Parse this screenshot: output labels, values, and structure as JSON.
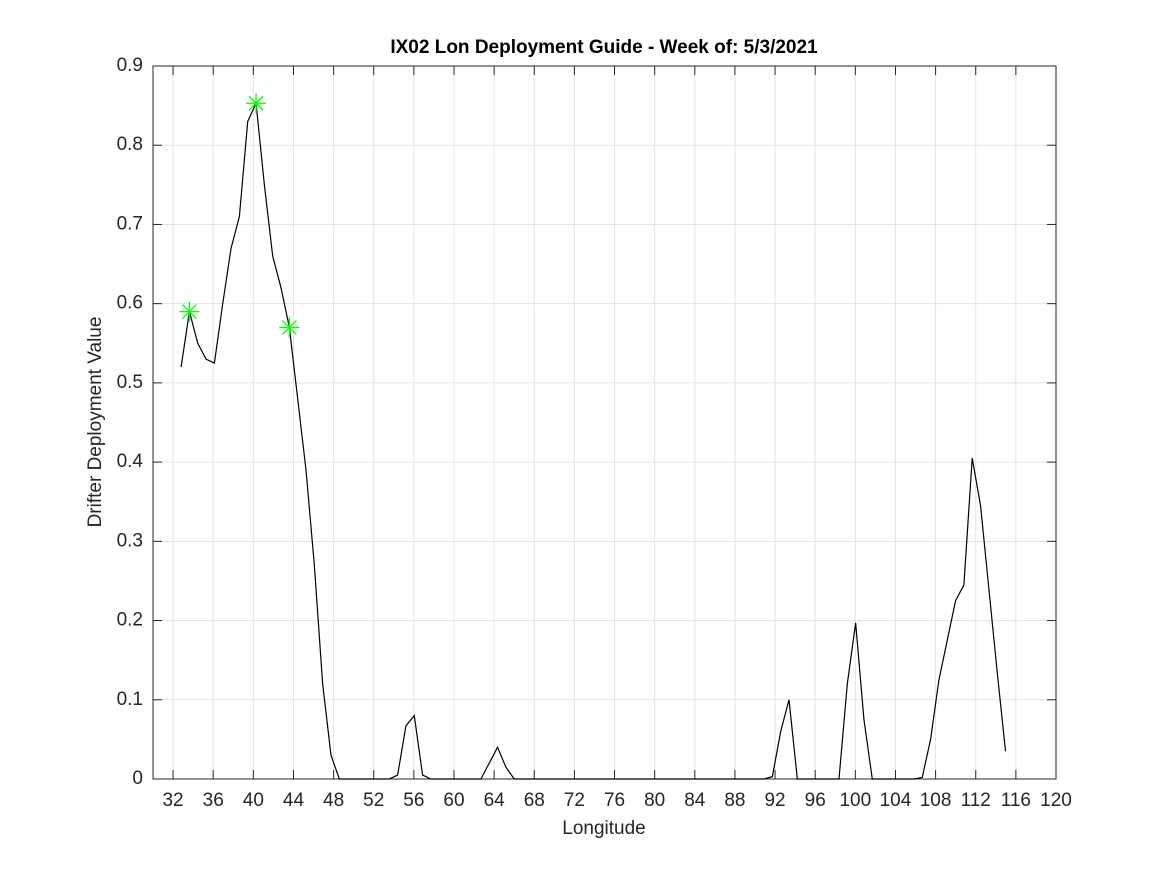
{
  "chart_data": {
    "type": "line",
    "title": "IX02 Lon Deployment Guide - Week of: 5/3/2021",
    "x_label": "Longitude",
    "y_label": "Drifter Deployment Value",
    "x": [
      32.8,
      33.63,
      34.46,
      35.29,
      36.12,
      36.95,
      37.78,
      38.61,
      39.44,
      40.27,
      41.1,
      41.93,
      42.76,
      43.59,
      44.42,
      45.25,
      46.08,
      46.91,
      47.74,
      48.57,
      49.4,
      50.23,
      51.06,
      51.89,
      52.72,
      53.55,
      54.38,
      55.21,
      56.04,
      56.87,
      57.7,
      58.53,
      59.36,
      60.19,
      61.02,
      61.85,
      62.68,
      63.51,
      64.34,
      65.17,
      66,
      66.83,
      67.66,
      68.49,
      69.32,
      70.15,
      70.98,
      71.81,
      72.64,
      73.47,
      74.3,
      75.13,
      75.96,
      76.79,
      77.62,
      78.45,
      79.28,
      80.11,
      80.94,
      81.77,
      82.6,
      83.43,
      84.26,
      85.09,
      85.92,
      86.75,
      87.58,
      88.41,
      89.24,
      90.07,
      90.9,
      91.73,
      92.56,
      93.39,
      94.22,
      95.05,
      95.88,
      96.71,
      97.54,
      98.37,
      99.2,
      100.03,
      100.86,
      101.69,
      102.52,
      103.35,
      104.18,
      105.01,
      105.84,
      106.67,
      107.5,
      108.33,
      109.16,
      109.99,
      110.82,
      111.65,
      112.48,
      113.31,
      114.14,
      114.97
    ],
    "series": [
      {
        "color": "#000000",
        "values": [
          0.52,
          0.59,
          0.55,
          0.53,
          0.525,
          0.6,
          0.67,
          0.71,
          0.83,
          0.853,
          0.75,
          0.66,
          0.62,
          0.57,
          0.48,
          0.39,
          0.27,
          0.12,
          0.03,
          0,
          0,
          0,
          0,
          0,
          0,
          0,
          0.005,
          0.067,
          0.08,
          0.005,
          0,
          0,
          0,
          0,
          0,
          0,
          0,
          0.02,
          0.04,
          0.015,
          0,
          0,
          0,
          0,
          0,
          0,
          0,
          0,
          0,
          0,
          0,
          0,
          0,
          0,
          0,
          0,
          0,
          0,
          0,
          0,
          0,
          0,
          0,
          0,
          0,
          0,
          0,
          0,
          0,
          0,
          0,
          0.003,
          0.06,
          0.1,
          0,
          0,
          0,
          0,
          0,
          0,
          0.12,
          0.197,
          0.075,
          0,
          0,
          0,
          0,
          0,
          0,
          0.002,
          0.05,
          0.125,
          0.175,
          0.225,
          0.245,
          0.405,
          0.345,
          0.24,
          0.135,
          0.035
        ]
      }
    ],
    "markers": {
      "color": "#00ff00",
      "x": [
        33.63,
        40.27,
        43.59
      ],
      "values": [
        0.59,
        0.853,
        0.57
      ]
    },
    "xlim": [
      30,
      120
    ],
    "xticks": [
      32,
      36,
      40,
      44,
      48,
      52,
      56,
      60,
      64,
      68,
      72,
      76,
      80,
      84,
      88,
      92,
      96,
      100,
      104,
      108,
      112,
      116,
      120
    ],
    "ylim": [
      0,
      0.9
    ],
    "yticks": [
      0,
      0.1,
      0.2,
      0.3,
      0.4,
      0.5,
      0.6,
      0.7,
      0.8,
      0.9
    ],
    "grid": true
  }
}
